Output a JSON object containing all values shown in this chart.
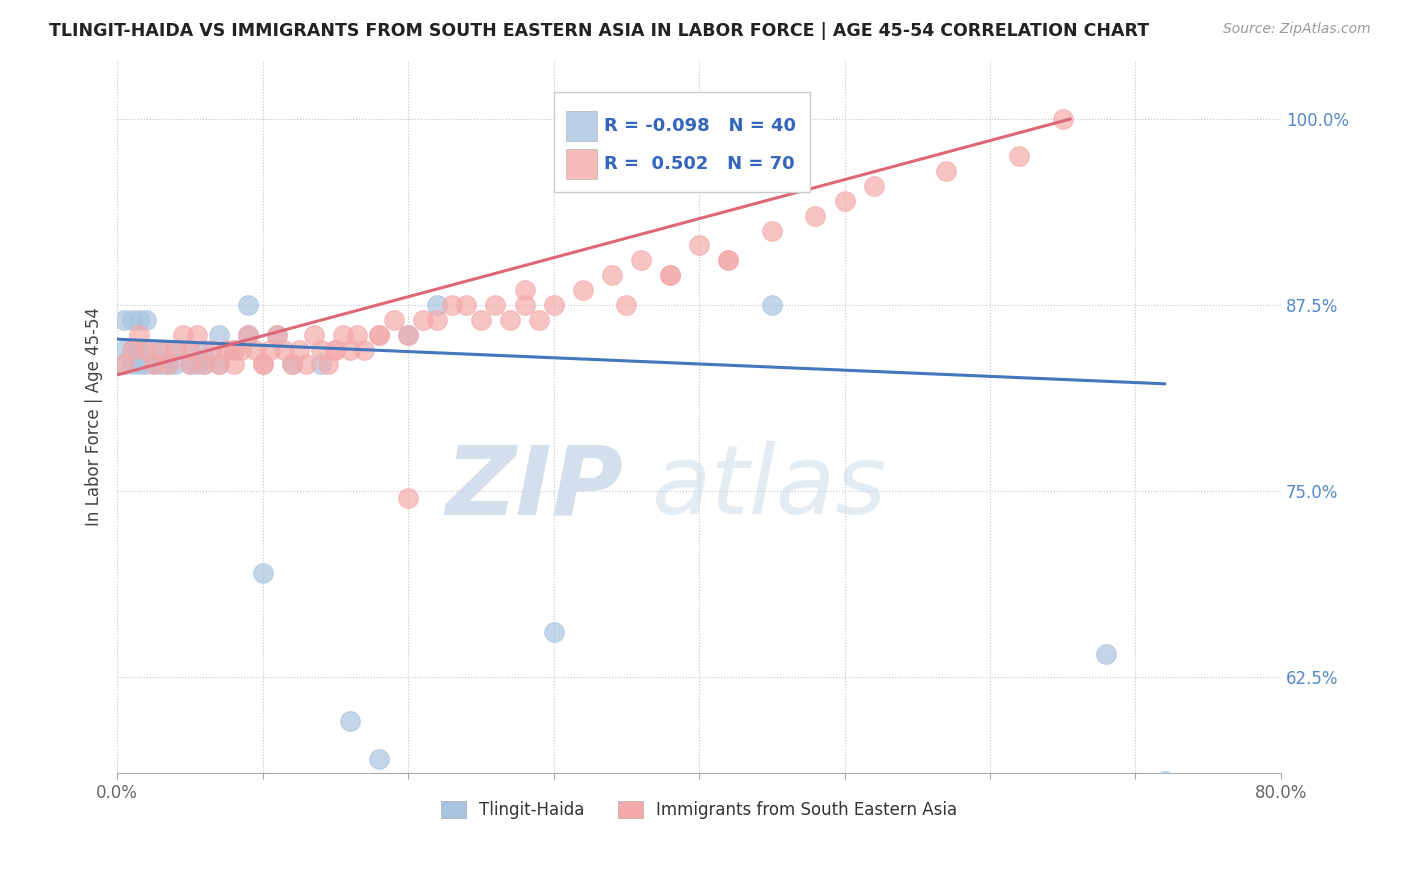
{
  "title": "TLINGIT-HAIDA VS IMMIGRANTS FROM SOUTH EASTERN ASIA IN LABOR FORCE | AGE 45-54 CORRELATION CHART",
  "source": "Source: ZipAtlas.com",
  "ylabel": "In Labor Force | Age 45-54",
  "x_min": 0.0,
  "x_max": 0.8,
  "y_min": 0.56,
  "y_max": 1.04,
  "x_ticks": [
    0.0,
    0.1,
    0.2,
    0.3,
    0.4,
    0.5,
    0.6,
    0.7,
    0.8
  ],
  "x_tick_labels": [
    "0.0%",
    "",
    "",
    "",
    "",
    "",
    "",
    "",
    "80.0%"
  ],
  "y_ticks": [
    0.625,
    0.75,
    0.875,
    1.0
  ],
  "y_tick_labels": [
    "62.5%",
    "75.0%",
    "87.5%",
    "100.0%"
  ],
  "blue_color": "#A8C4E0",
  "pink_color": "#F4AAAA",
  "blue_line_color": "#4477BB",
  "pink_line_color": "#DD6677",
  "legend_R1": "-0.098",
  "legend_N1": "40",
  "legend_R2": "0.502",
  "legend_N2": "70",
  "blue_points_x": [
    0.005,
    0.005,
    0.005,
    0.01,
    0.01,
    0.01,
    0.015,
    0.015,
    0.015,
    0.02,
    0.02,
    0.02,
    0.025,
    0.03,
    0.03,
    0.035,
    0.04,
    0.04,
    0.05,
    0.05,
    0.055,
    0.06,
    0.06,
    0.07,
    0.07,
    0.08,
    0.09,
    0.09,
    0.1,
    0.11,
    0.12,
    0.14,
    0.16,
    0.18,
    0.2,
    0.22,
    0.3,
    0.45,
    0.68,
    0.72
  ],
  "blue_points_y": [
    0.835,
    0.845,
    0.865,
    0.835,
    0.845,
    0.865,
    0.835,
    0.845,
    0.865,
    0.835,
    0.845,
    0.865,
    0.835,
    0.835,
    0.845,
    0.835,
    0.835,
    0.845,
    0.835,
    0.845,
    0.835,
    0.835,
    0.845,
    0.835,
    0.855,
    0.845,
    0.855,
    0.875,
    0.695,
    0.855,
    0.835,
    0.835,
    0.595,
    0.57,
    0.855,
    0.875,
    0.655,
    0.875,
    0.64,
    0.555
  ],
  "pink_points_x": [
    0.005,
    0.01,
    0.015,
    0.02,
    0.025,
    0.03,
    0.035,
    0.04,
    0.045,
    0.05,
    0.055,
    0.06,
    0.065,
    0.07,
    0.075,
    0.08,
    0.085,
    0.09,
    0.095,
    0.1,
    0.105,
    0.11,
    0.115,
    0.12,
    0.125,
    0.13,
    0.135,
    0.14,
    0.145,
    0.15,
    0.155,
    0.16,
    0.165,
    0.17,
    0.18,
    0.19,
    0.2,
    0.21,
    0.22,
    0.23,
    0.24,
    0.25,
    0.26,
    0.27,
    0.28,
    0.29,
    0.3,
    0.32,
    0.34,
    0.36,
    0.38,
    0.4,
    0.42,
    0.45,
    0.48,
    0.5,
    0.52,
    0.57,
    0.62,
    0.65,
    0.38,
    0.28,
    0.18,
    0.08,
    0.42,
    0.35,
    0.2,
    0.15,
    0.1,
    0.05
  ],
  "pink_points_y": [
    0.835,
    0.845,
    0.855,
    0.845,
    0.835,
    0.845,
    0.835,
    0.845,
    0.855,
    0.845,
    0.855,
    0.835,
    0.845,
    0.835,
    0.845,
    0.835,
    0.845,
    0.855,
    0.845,
    0.835,
    0.845,
    0.855,
    0.845,
    0.835,
    0.845,
    0.835,
    0.855,
    0.845,
    0.835,
    0.845,
    0.855,
    0.845,
    0.855,
    0.845,
    0.855,
    0.865,
    0.745,
    0.865,
    0.865,
    0.875,
    0.875,
    0.865,
    0.875,
    0.865,
    0.875,
    0.865,
    0.875,
    0.885,
    0.895,
    0.905,
    0.895,
    0.915,
    0.905,
    0.925,
    0.935,
    0.945,
    0.955,
    0.965,
    0.975,
    1.0,
    0.895,
    0.885,
    0.855,
    0.845,
    0.905,
    0.875,
    0.855,
    0.845,
    0.835,
    0.835
  ],
  "blue_trend_x": [
    0.0,
    0.72
  ],
  "blue_trend_y": [
    0.852,
    0.822
  ],
  "pink_trend_x": [
    0.0,
    0.655
  ],
  "pink_trend_y": [
    0.828,
    1.0
  ]
}
